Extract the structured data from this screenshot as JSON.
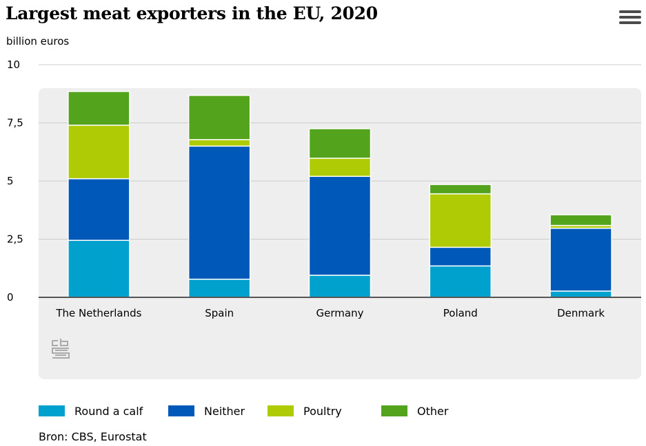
{
  "chart_data": {
    "type": "bar",
    "stacked": true,
    "title": "Largest meat exporters in the EU, 2020",
    "ylabel": "billion euros",
    "xlabel": "",
    "ylim": [
      0,
      10
    ],
    "yticks": [
      {
        "value": 0,
        "label": "0"
      },
      {
        "value": 2.5,
        "label": "2,5"
      },
      {
        "value": 5,
        "label": "5"
      },
      {
        "value": 7.5,
        "label": "7,5"
      },
      {
        "value": 10,
        "label": "10"
      }
    ],
    "categories": [
      "The Netherlands",
      "Spain",
      "Germany",
      "Poland",
      "Denmark"
    ],
    "series": [
      {
        "name": "Round a calf",
        "color": "#00a1cd",
        "values": [
          2.45,
          0.78,
          0.95,
          1.35,
          0.27
        ]
      },
      {
        "name": "Neither",
        "color": "#0058b8",
        "values": [
          2.65,
          5.72,
          4.25,
          0.8,
          2.7
        ]
      },
      {
        "name": "Poultry",
        "color": "#afcb05",
        "values": [
          2.3,
          0.28,
          0.78,
          2.3,
          0.12
        ]
      },
      {
        "name": "Other",
        "color": "#53a31d",
        "values": [
          1.45,
          1.9,
          1.27,
          0.4,
          0.46
        ]
      }
    ],
    "legend_position": "bottom",
    "grid": true
  },
  "source": "Bron: CBS, Eurostat",
  "menu_icon": "hamburger-menu-icon",
  "logo_icon": "cbs-logo-icon"
}
